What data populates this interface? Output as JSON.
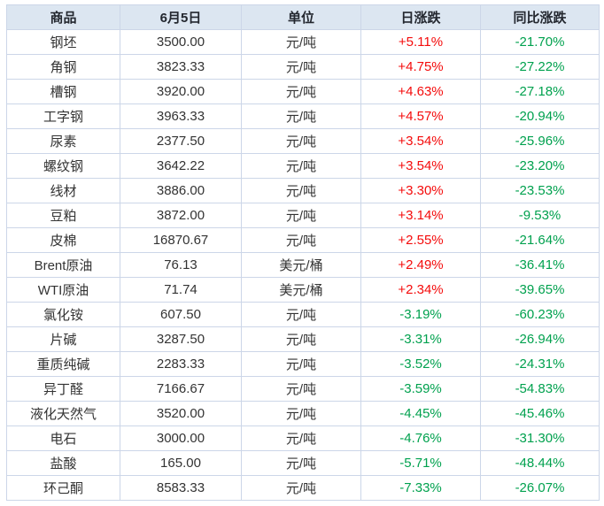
{
  "chart_data": {
    "type": "table",
    "columns": [
      "商品",
      "6月5日",
      "单位",
      "日涨跌",
      "同比涨跌"
    ],
    "rows": [
      [
        "钢坯",
        "3500.00",
        "元/吨",
        "+5.11%",
        "-21.70%"
      ],
      [
        "角钢",
        "3823.33",
        "元/吨",
        "+4.75%",
        "-27.22%"
      ],
      [
        "槽钢",
        "3920.00",
        "元/吨",
        "+4.63%",
        "-27.18%"
      ],
      [
        "工字钢",
        "3963.33",
        "元/吨",
        "+4.57%",
        "-20.94%"
      ],
      [
        "尿素",
        "2377.50",
        "元/吨",
        "+3.54%",
        "-25.96%"
      ],
      [
        "螺纹钢",
        "3642.22",
        "元/吨",
        "+3.54%",
        "-23.20%"
      ],
      [
        "线材",
        "3886.00",
        "元/吨",
        "+3.30%",
        "-23.53%"
      ],
      [
        "豆粕",
        "3872.00",
        "元/吨",
        "+3.14%",
        "-9.53%"
      ],
      [
        "皮棉",
        "16870.67",
        "元/吨",
        "+2.55%",
        "-21.64%"
      ],
      [
        "Brent原油",
        "76.13",
        "美元/桶",
        "+2.49%",
        "-36.41%"
      ],
      [
        "WTI原油",
        "71.74",
        "美元/桶",
        "+2.34%",
        "-39.65%"
      ],
      [
        "氯化铵",
        "607.50",
        "元/吨",
        "-3.19%",
        "-60.23%"
      ],
      [
        "片碱",
        "3287.50",
        "元/吨",
        "-3.31%",
        "-26.94%"
      ],
      [
        "重质纯碱",
        "2283.33",
        "元/吨",
        "-3.52%",
        "-24.31%"
      ],
      [
        "异丁醛",
        "7166.67",
        "元/吨",
        "-3.59%",
        "-54.83%"
      ],
      [
        "液化天然气",
        "3520.00",
        "元/吨",
        "-4.45%",
        "-45.46%"
      ],
      [
        "电石",
        "3000.00",
        "元/吨",
        "-4.76%",
        "-31.30%"
      ],
      [
        "盐酸",
        "165.00",
        "元/吨",
        "-5.71%",
        "-48.44%"
      ],
      [
        "环己酮",
        "8583.33",
        "元/吨",
        "-7.33%",
        "-26.07%"
      ]
    ]
  },
  "colors": {
    "up_red": "#f40b0b",
    "down_green": "#00a14e",
    "header_bg": "#dce6f1",
    "border": "#ccd6e8",
    "header_text": "#23272f",
    "body_text": "#333333"
  }
}
